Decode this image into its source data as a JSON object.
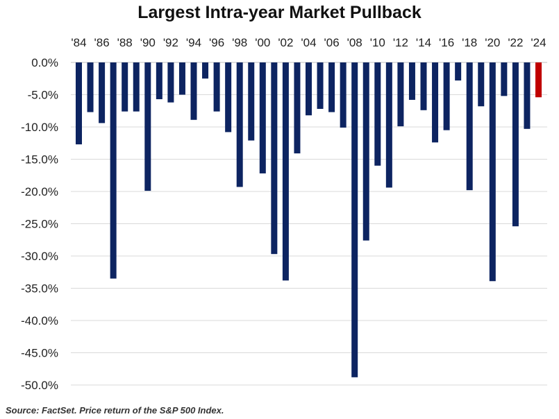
{
  "title": "Largest Intra-year Market Pullback",
  "footnote": "Source: FactSet. Price return of the S&P 500 Index.",
  "colors": {
    "bar": "#0d2461",
    "highlight": "#c00000",
    "grid": "#d9d9d9"
  },
  "chart_data": {
    "type": "bar",
    "title": "Largest Intra-year Market Pullback",
    "xlabel": "",
    "ylabel": "",
    "ylim": [
      -50,
      0
    ],
    "grid": true,
    "legend": "none",
    "y_tick_labels": [
      "0.0%",
      "-5.0%",
      "-10.0%",
      "-15.0%",
      "-20.0%",
      "-25.0%",
      "-30.0%",
      "-35.0%",
      "-40.0%",
      "-45.0%",
      "-50.0%"
    ],
    "x_tick_labels": [
      "'84",
      "'86",
      "'88",
      "'90",
      "'92",
      "'94",
      "'96",
      "'98",
      "'00",
      "'02",
      "'04",
      "'06",
      "'08",
      "'10",
      "'12",
      "'14",
      "'16",
      "'18",
      "'20",
      "'22",
      "'24"
    ],
    "categories": [
      "1984",
      "1985",
      "1986",
      "1987",
      "1988",
      "1989",
      "1990",
      "1991",
      "1992",
      "1993",
      "1994",
      "1995",
      "1996",
      "1997",
      "1998",
      "1999",
      "2000",
      "2001",
      "2002",
      "2003",
      "2004",
      "2005",
      "2006",
      "2007",
      "2008",
      "2009",
      "2010",
      "2011",
      "2012",
      "2013",
      "2014",
      "2015",
      "2016",
      "2017",
      "2018",
      "2019",
      "2020",
      "2021",
      "2022",
      "2023",
      "2024"
    ],
    "values": [
      -12.7,
      -7.7,
      -9.4,
      -33.5,
      -7.6,
      -7.6,
      -19.9,
      -5.7,
      -6.2,
      -5.0,
      -8.9,
      -2.5,
      -7.6,
      -10.8,
      -19.3,
      -12.1,
      -17.2,
      -29.7,
      -33.8,
      -14.1,
      -8.2,
      -7.2,
      -7.7,
      -10.1,
      -48.8,
      -27.6,
      -16.0,
      -19.4,
      -9.9,
      -5.8,
      -7.4,
      -12.4,
      -10.5,
      -2.8,
      -19.8,
      -6.8,
      -33.9,
      -5.2,
      -25.4,
      -10.3,
      -5.4
    ],
    "highlight_category": "2024"
  }
}
